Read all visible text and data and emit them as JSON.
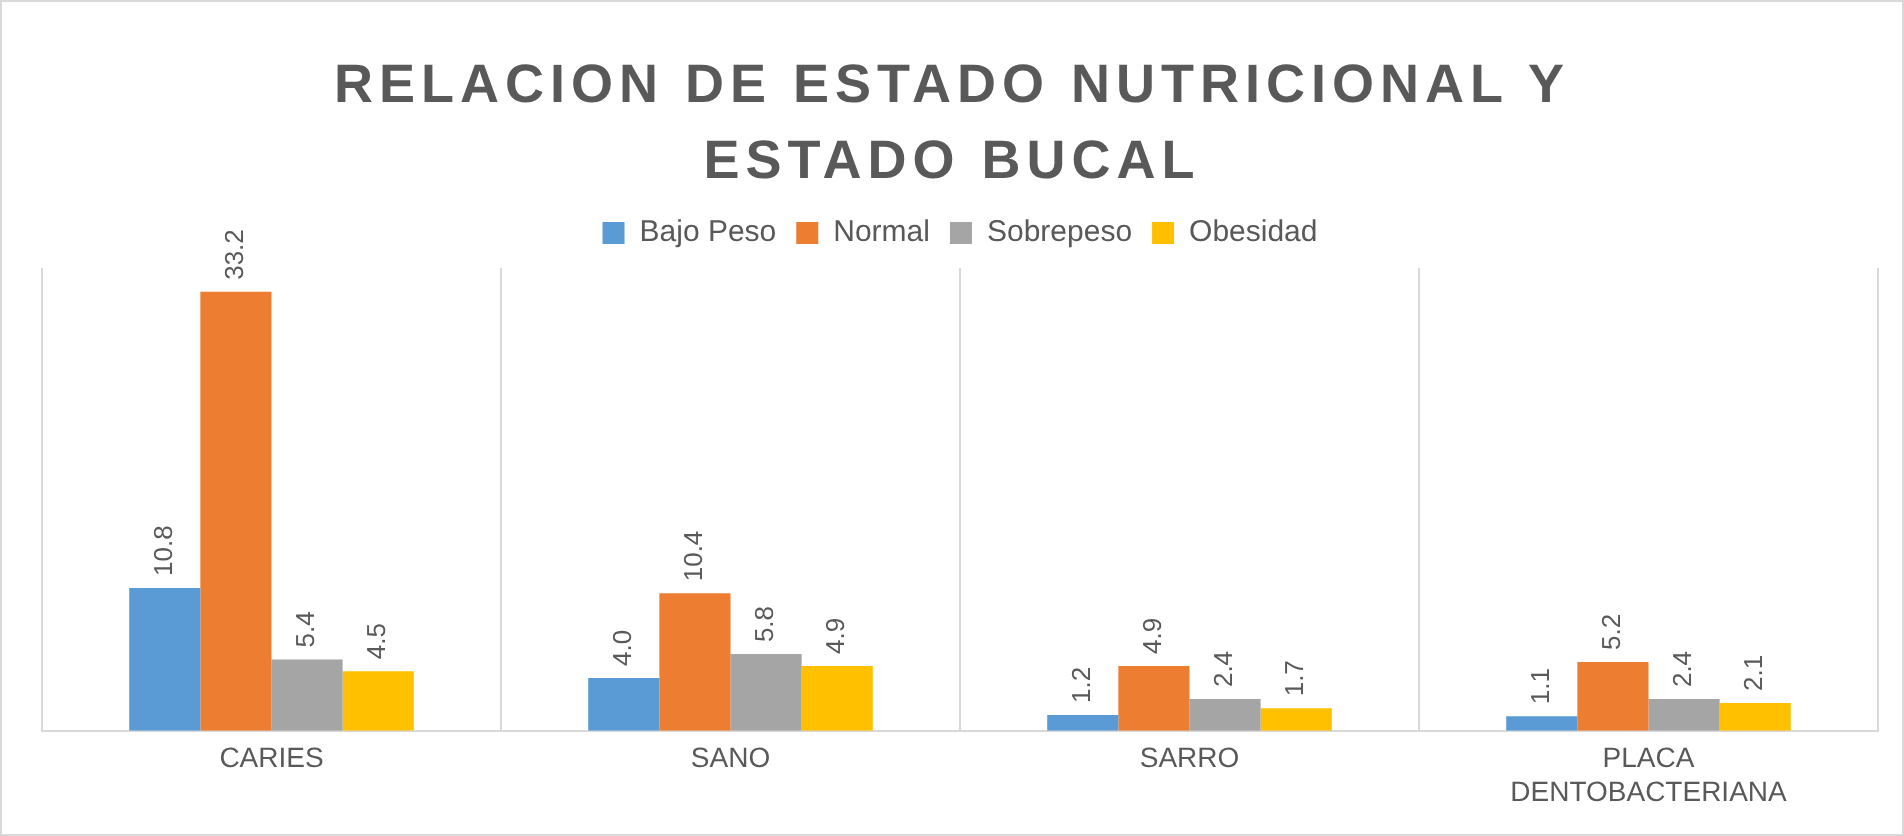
{
  "chart_data": {
    "type": "bar",
    "title": "RELACION DE ESTADO NUTRICIONAL Y ESTADO BUCAL",
    "categories": [
      "CARIES",
      "SANO",
      "SARRO",
      "PLACA DENTOBACTERIANA"
    ],
    "series": [
      {
        "name": "Bajo Peso",
        "color": "#5b9bd5",
        "values": [
          10.8,
          4.0,
          1.2,
          1.1
        ],
        "value_labels": [
          "10.8",
          "4.0",
          "1.2",
          "1.1"
        ]
      },
      {
        "name": "Normal",
        "color": "#ed7d31",
        "values": [
          33.2,
          10.4,
          4.9,
          5.2
        ],
        "value_labels": [
          "33.2",
          "10.4",
          "4.9",
          "5.2"
        ]
      },
      {
        "name": "Sobrepeso",
        "color": "#a5a5a5",
        "values": [
          5.4,
          5.8,
          2.4,
          2.4
        ],
        "value_labels": [
          "5.4",
          "5.8",
          "2.4",
          "2.4"
        ]
      },
      {
        "name": "Obesidad",
        "color": "#ffc000",
        "values": [
          4.5,
          4.9,
          1.7,
          2.1
        ],
        "value_labels": [
          "4.5",
          "4.9",
          "1.7",
          "2.1"
        ]
      }
    ],
    "grid": "x",
    "legend": "top"
  }
}
